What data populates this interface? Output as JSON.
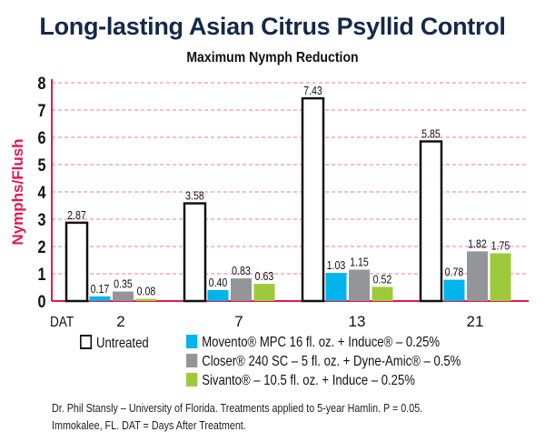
{
  "chart_data": {
    "type": "bar",
    "title": "Long-lasting Asian Citrus Psyllid Control",
    "subtitle": "Maximum Nymph Reduction",
    "xlabel": "DAT",
    "ylabel": "Nymphs/Flush",
    "ylim": [
      0,
      8
    ],
    "yticks": [
      "0",
      "1",
      "2",
      "3",
      "4",
      "5",
      "6",
      "7",
      "8"
    ],
    "grid": true,
    "categories": [
      "2",
      "7",
      "13",
      "21"
    ],
    "series": [
      {
        "name": "Untreated",
        "color": "#ffffff",
        "values": [
          2.87,
          3.58,
          7.43,
          5.85
        ],
        "labels": [
          "2.87",
          "3.58",
          "7.43",
          "5.85"
        ]
      },
      {
        "name": "Movento® MPC 16 fl. oz. + Induce® – 0.25%",
        "color": "#00b5ec",
        "values": [
          0.17,
          0.4,
          1.03,
          0.78
        ],
        "labels": [
          "0.17",
          "0.40",
          "1.03",
          "0.78"
        ]
      },
      {
        "name": "Closer® 240 SC – 5 fl. oz. + Dyne-Amic® – 0.5%",
        "color": "#939598",
        "values": [
          0.35,
          0.83,
          1.15,
          1.82
        ],
        "labels": [
          "0.35",
          "0.83",
          "1.15",
          "1.82"
        ]
      },
      {
        "name": "Sivanto® – 10.5 fl. oz. + Induce – 0.25%",
        "color": "#9dca3c",
        "values": [
          0.08,
          0.63,
          0.52,
          1.75
        ],
        "labels": [
          "0.08",
          "0.63",
          "0.52",
          "1.75"
        ]
      }
    ],
    "legend_position": "bottom",
    "axis_color": "#e8174f",
    "title_color": "#14284b"
  },
  "footnote": {
    "line1": "Dr. Phil Stansly – University of Florida. Treatments applied to 5-year Hamlin. P = 0.05.",
    "line2": "Immokalee, FL. DAT = Days After Treatment."
  }
}
